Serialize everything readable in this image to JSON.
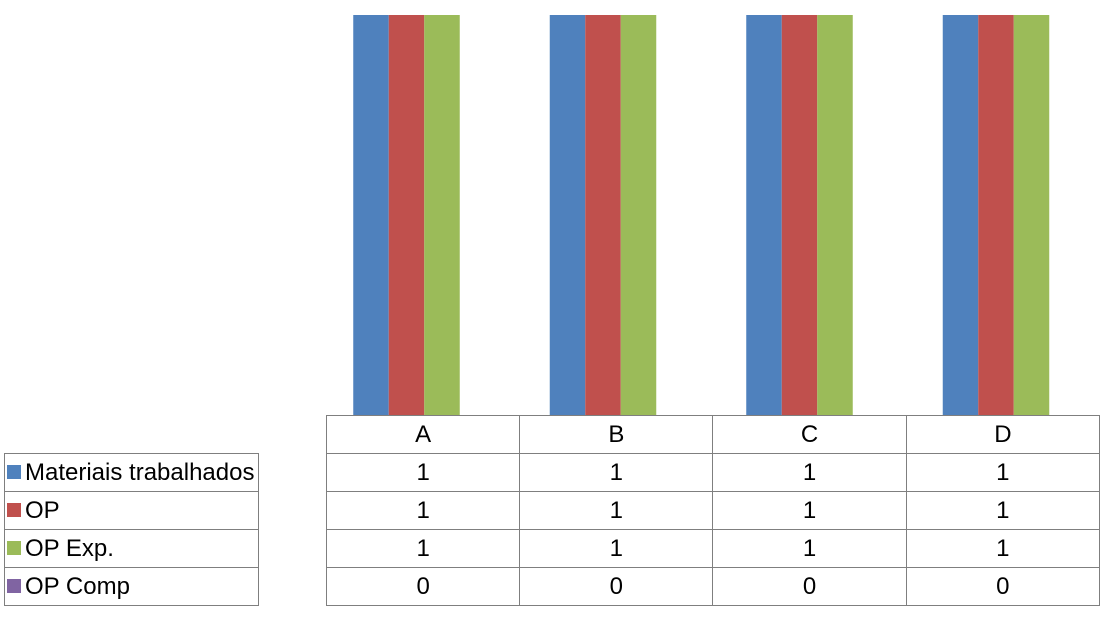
{
  "chart_data": {
    "type": "bar",
    "categories": [
      "A",
      "B",
      "C",
      "D"
    ],
    "series": [
      {
        "name": "Materiais trabalhados",
        "values": [
          1,
          1,
          1,
          1
        ],
        "color": "#4f81bd"
      },
      {
        "name": "OP",
        "values": [
          1,
          1,
          1,
          1
        ],
        "color": "#c0504d"
      },
      {
        "name": "OP Exp.",
        "values": [
          1,
          1,
          1,
          1
        ],
        "color": "#9bbb59"
      },
      {
        "name": "OP Comp",
        "values": [
          0,
          0,
          0,
          0
        ],
        "color": "#8064a2"
      }
    ],
    "title": "",
    "xlabel": "",
    "ylabel": "",
    "grid": false,
    "legend": "data-table",
    "ylim": [
      0,
      1
    ]
  }
}
